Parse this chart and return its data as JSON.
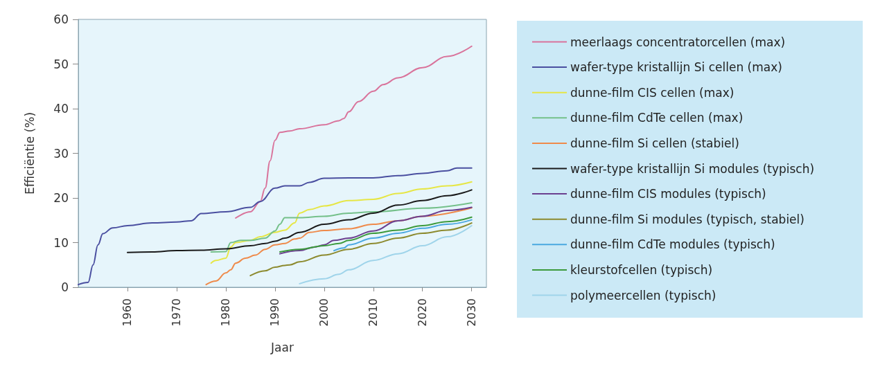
{
  "chart_data": {
    "type": "line",
    "xlabel": "Jaar",
    "ylabel": "Efficiëntie (%)",
    "xlim": [
      1950,
      2033
    ],
    "xticks": [
      1960,
      1970,
      1980,
      1990,
      2000,
      2010,
      2020,
      2030
    ],
    "ylim": [
      0,
      60
    ],
    "yticks": [
      0,
      10,
      20,
      30,
      40,
      50,
      60
    ],
    "grid": false,
    "legend": "right",
    "marker": "none",
    "line_style": "solid",
    "series": [
      {
        "name": "meerlaags concentratorcellen (max)",
        "color": "#d9739b",
        "x": [
          1982,
          1985,
          1987,
          1988,
          1989,
          1990,
          1991,
          1993,
          1995,
          2000,
          2003,
          2004,
          2005,
          2007,
          2010,
          2012,
          2015,
          2020,
          2025,
          2030
        ],
        "values": [
          15.5,
          16.9,
          19.2,
          22.2,
          28.3,
          32.9,
          34.7,
          35,
          35.5,
          36.4,
          37.3,
          37.8,
          39.3,
          41.6,
          43.9,
          45.4,
          46.9,
          49.2,
          51.7,
          54
        ]
      },
      {
        "name": "wafer-type kristallijn Si cellen (max)",
        "color": "#4a4fa0",
        "x": [
          1950,
          1952,
          1953,
          1954,
          1955,
          1957,
          1960,
          1965,
          1970,
          1973,
          1975,
          1980,
          1985,
          1987,
          1990,
          1992,
          1995,
          1997,
          2000,
          2005,
          2010,
          2015,
          2020,
          2025,
          2027,
          2030
        ],
        "values": [
          0.6,
          1.1,
          5,
          9.5,
          12,
          13.3,
          13.8,
          14.4,
          14.6,
          14.9,
          16.5,
          16.9,
          17.9,
          19.2,
          22.2,
          22.7,
          22.7,
          23.5,
          24.4,
          24.5,
          24.5,
          25,
          25.5,
          26.1,
          26.7,
          26.7
        ]
      },
      {
        "name": "dunne-film CIS cellen (max)",
        "color": "#e6e645",
        "x": [
          1977,
          1978,
          1980,
          1981,
          1982,
          1985,
          1987,
          1990,
          1992,
          1994,
          1995,
          1997,
          2000,
          2005,
          2010,
          2015,
          2020,
          2025,
          2030
        ],
        "values": [
          5.4,
          6,
          6.5,
          9,
          10,
          10.5,
          11.3,
          12.3,
          12.8,
          14.4,
          16.6,
          17.4,
          18.2,
          19.4,
          19.7,
          21,
          22,
          22.7,
          23.6
        ]
      },
      {
        "name": "dunne-film CdTe cellen (max)",
        "color": "#74c08a",
        "x": [
          1977,
          1980,
          1981,
          1983,
          1985,
          1988,
          1990,
          1991,
          1992,
          1995,
          2000,
          2005,
          2010,
          2020,
          2030
        ],
        "values": [
          7.9,
          8,
          10,
          10.5,
          10.5,
          11,
          12.6,
          14.1,
          15.6,
          15.6,
          15.9,
          16.6,
          16.9,
          17.7,
          18.9
        ]
      },
      {
        "name": "dunne-film Si cellen (stabiel)",
        "color": "#ef8a4a",
        "x": [
          1976,
          1978,
          1980,
          1981,
          1982,
          1984,
          1986,
          1988,
          1990,
          1992,
          1994,
          1995,
          1997,
          2000,
          2005,
          2010,
          2015,
          2020,
          2030
        ],
        "values": [
          0.6,
          1.4,
          3.2,
          3.9,
          5.4,
          6.5,
          7.2,
          8.5,
          9.5,
          9.8,
          10.8,
          11,
          12.3,
          12.7,
          13.1,
          14.1,
          14.9,
          15.9,
          17.8
        ]
      },
      {
        "name": "wafer-type kristallijn Si modules (typisch)",
        "color": "#1a1a1a",
        "x": [
          1960,
          1965,
          1970,
          1975,
          1980,
          1985,
          1988,
          1990,
          1992,
          1995,
          2000,
          2005,
          2010,
          2015,
          2020,
          2025,
          2030
        ],
        "values": [
          7.8,
          7.9,
          8.2,
          8.3,
          8.6,
          9.3,
          9.8,
          10.3,
          11,
          12.3,
          14.1,
          15.1,
          16.6,
          18.4,
          19.4,
          20.5,
          21.8
        ]
      },
      {
        "name": "dunne-film CIS modules (typisch)",
        "color": "#6b3f8f",
        "x": [
          1991,
          1995,
          1998,
          2000,
          2002,
          2005,
          2010,
          2015,
          2020,
          2025,
          2030
        ],
        "values": [
          7.5,
          8.2,
          9,
          9.5,
          10.5,
          11,
          12.6,
          14.9,
          15.9,
          17.2,
          17.9
        ]
      },
      {
        "name": "dunne-film Si modules (typisch, stabiel)",
        "color": "#8c8a2e",
        "x": [
          1985,
          1988,
          1990,
          1992,
          1993,
          1995,
          2000,
          2005,
          2010,
          2015,
          2020,
          2025,
          2030
        ],
        "values": [
          2.6,
          3.7,
          4.5,
          4.9,
          5,
          5.7,
          7.2,
          8.5,
          9.8,
          11,
          12.1,
          12.8,
          14.4
        ]
      },
      {
        "name": "dunne-film CdTe modules (typisch)",
        "color": "#4aa8e0",
        "x": [
          2002,
          2004,
          2005,
          2010,
          2015,
          2020,
          2025,
          2030
        ],
        "values": [
          8.2,
          8.8,
          9.5,
          11,
          12.1,
          13.2,
          14.1,
          15.1
        ]
      },
      {
        "name": "kleurstofcellen (typisch)",
        "color": "#3c9a3c",
        "x": [
          1991,
          1995,
          2000,
          2003,
          2005,
          2010,
          2015,
          2020,
          2025,
          2030
        ],
        "values": [
          7.9,
          8.5,
          9.3,
          9.8,
          10.5,
          12.1,
          12.8,
          13.8,
          14.7,
          15.7
        ]
      },
      {
        "name": "polymeercellen (typisch)",
        "color": "#9fd4ea",
        "x": [
          1995,
          2000,
          2003,
          2005,
          2010,
          2015,
          2020,
          2025,
          2030
        ],
        "values": [
          0.8,
          1.9,
          2.9,
          3.9,
          6,
          7.5,
          9.3,
          11.3,
          13.8
        ]
      }
    ]
  }
}
